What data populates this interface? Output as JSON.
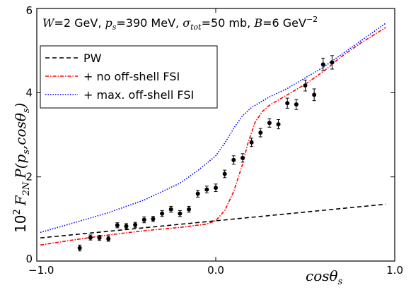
{
  "chart_data": {
    "type": "line",
    "title": "",
    "annotation": {
      "W_label": "W",
      "W_value": "=2 GeV, ",
      "ps_label": "p",
      "ps_sub": "s",
      "ps_value": "=390 MeV, ",
      "sigma_label": "σ",
      "sigma_sub": "tot",
      "sigma_value": "=50 mb, ",
      "B_label": "B",
      "B_value": "=6 GeV",
      "B_exp": "−2"
    },
    "xlabel_text": "cosθ",
    "xlabel_sub": "s",
    "ylabel_prefix": "10",
    "ylabel_exp": "2",
    "ylabel_F": "F",
    "ylabel_F_sub": "2N",
    "ylabel_P": "P(p",
    "ylabel_P_sub": "s",
    "ylabel_P_rest": ",cosθ",
    "ylabel_P_sub2": "s",
    "ylabel_close": ")",
    "xlim": [
      -1.0,
      1.0
    ],
    "ylim": [
      0,
      6
    ],
    "xticks": [
      -1.0,
      0.0,
      1.0
    ],
    "xtick_labels": [
      "−1.0",
      "0.0",
      "1.0"
    ],
    "yticks": [
      0,
      2,
      4,
      6
    ],
    "ytick_labels": [
      "0",
      "2",
      "4",
      "6"
    ],
    "legend_position": "upper-left",
    "series": [
      {
        "name": "PW",
        "color": "#000000",
        "dash": "6,4",
        "x": [
          -0.98,
          0.95
        ],
        "y": [
          0.55,
          1.35
        ]
      },
      {
        "name": "+ no off-shell FSI",
        "color": "#ff0000",
        "dash": "5,2,1.5,2",
        "x": [
          -0.98,
          -0.8,
          -0.6,
          -0.4,
          -0.2,
          -0.05,
          0.0,
          0.05,
          0.1,
          0.15,
          0.18,
          0.22,
          0.26,
          0.3,
          0.4,
          0.5,
          0.6,
          0.7,
          0.8,
          0.95
        ],
        "y": [
          0.38,
          0.5,
          0.62,
          0.72,
          0.8,
          0.88,
          0.96,
          1.2,
          1.65,
          2.3,
          2.8,
          3.3,
          3.55,
          3.7,
          3.95,
          4.2,
          4.5,
          4.85,
          5.15,
          5.55
        ]
      },
      {
        "name": "+ max. off-shell FSI",
        "color": "#0000ff",
        "dash": "1.5,2",
        "x": [
          -0.98,
          -0.8,
          -0.6,
          -0.4,
          -0.2,
          -0.1,
          0.0,
          0.05,
          0.1,
          0.15,
          0.2,
          0.3,
          0.4,
          0.5,
          0.6,
          0.7,
          0.8,
          0.95
        ],
        "y": [
          0.68,
          0.9,
          1.15,
          1.45,
          1.85,
          2.15,
          2.5,
          2.8,
          3.15,
          3.45,
          3.65,
          3.9,
          4.1,
          4.35,
          4.6,
          4.9,
          5.2,
          5.65
        ]
      }
    ],
    "data_points": {
      "name": "data",
      "x": [
        -0.76,
        -0.7,
        -0.65,
        -0.6,
        -0.55,
        -0.5,
        -0.45,
        -0.4,
        -0.35,
        -0.3,
        -0.25,
        -0.2,
        -0.15,
        -0.1,
        -0.05,
        0.0,
        0.05,
        0.1,
        0.15,
        0.2,
        0.25,
        0.3,
        0.35,
        0.4,
        0.45,
        0.5,
        0.55,
        0.6,
        0.65
      ],
      "y": [
        0.31,
        0.56,
        0.55,
        0.53,
        0.85,
        0.83,
        0.86,
        0.98,
        1.0,
        1.13,
        1.23,
        1.13,
        1.23,
        1.6,
        1.7,
        1.74,
        2.07,
        2.4,
        2.45,
        2.82,
        3.05,
        3.28,
        3.25,
        3.75,
        3.72,
        4.17,
        3.95,
        4.67,
        4.72
      ],
      "err": [
        0.07,
        0.06,
        0.06,
        0.06,
        0.06,
        0.06,
        0.06,
        0.07,
        0.06,
        0.07,
        0.07,
        0.07,
        0.07,
        0.08,
        0.08,
        0.09,
        0.09,
        0.1,
        0.1,
        0.1,
        0.1,
        0.1,
        0.11,
        0.12,
        0.12,
        0.13,
        0.14,
        0.15,
        0.16
      ]
    }
  }
}
